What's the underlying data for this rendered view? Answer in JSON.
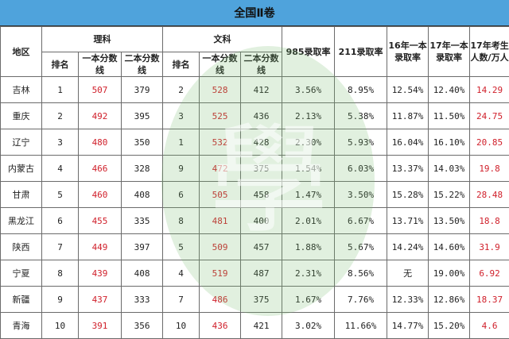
{
  "title": "全国Ⅱ卷",
  "headers": {
    "region": "地区",
    "science": "理科",
    "arts": "文科",
    "rank": "排名",
    "first_line": "一本分数线",
    "second_line": "二本分数线",
    "rate985": "985录取率",
    "rate211": "211录取率",
    "rate16": "16年一本录取率",
    "rate17": "17年一本录取率",
    "examinees17": "17年考生人数/万人"
  },
  "rows": [
    {
      "region": "吉林",
      "sci_rank": "1",
      "sci_first": "507",
      "sci_second": "379",
      "art_rank": "2",
      "art_first": "528",
      "art_second": "412",
      "r985": "3.56%",
      "r211": "8.95%",
      "r16": "12.54%",
      "r17": "12.40%",
      "count": "14.29"
    },
    {
      "region": "重庆",
      "sci_rank": "2",
      "sci_first": "492",
      "sci_second": "395",
      "art_rank": "3",
      "art_first": "525",
      "art_second": "436",
      "r985": "2.13%",
      "r211": "5.38%",
      "r16": "11.87%",
      "r17": "11.50%",
      "count": "24.75"
    },
    {
      "region": "辽宁",
      "sci_rank": "3",
      "sci_first": "480",
      "sci_second": "350",
      "art_rank": "1",
      "art_first": "532",
      "art_second": "428",
      "r985": "2.30%",
      "r211": "5.93%",
      "r16": "16.04%",
      "r17": "16.10%",
      "count": "20.85"
    },
    {
      "region": "内蒙古",
      "sci_rank": "4",
      "sci_first": "466",
      "sci_second": "328",
      "art_rank": "9",
      "art_first": "472",
      "art_second": "375",
      "r985": "1.54%",
      "r211": "6.03%",
      "r16": "13.37%",
      "r17": "14.03%",
      "count": "19.8"
    },
    {
      "region": "甘肃",
      "sci_rank": "5",
      "sci_first": "460",
      "sci_second": "408",
      "art_rank": "6",
      "art_first": "505",
      "art_second": "458",
      "r985": "1.47%",
      "r211": "3.50%",
      "r16": "15.28%",
      "r17": "15.22%",
      "count": "28.48"
    },
    {
      "region": "黑龙江",
      "sci_rank": "6",
      "sci_first": "455",
      "sci_second": "335",
      "art_rank": "8",
      "art_first": "481",
      "art_second": "400",
      "r985": "2.01%",
      "r211": "6.67%",
      "r16": "13.71%",
      "r17": "13.50%",
      "count": "18.8"
    },
    {
      "region": "陕西",
      "sci_rank": "7",
      "sci_first": "449",
      "sci_second": "397",
      "art_rank": "5",
      "art_first": "509",
      "art_second": "457",
      "r985": "1.88%",
      "r211": "5.67%",
      "r16": "14.24%",
      "r17": "14.60%",
      "count": "31.9"
    },
    {
      "region": "宁夏",
      "sci_rank": "8",
      "sci_first": "439",
      "sci_second": "408",
      "art_rank": "4",
      "art_first": "519",
      "art_second": "487",
      "r985": "2.31%",
      "r211": "8.56%",
      "r16": "无",
      "r17": "19.00%",
      "count": "6.92"
    },
    {
      "region": "新疆",
      "sci_rank": "9",
      "sci_first": "437",
      "sci_second": "333",
      "art_rank": "7",
      "art_first": "486",
      "art_second": "375",
      "r985": "1.67%",
      "r211": "7.76%",
      "r16": "12.33%",
      "r17": "12.86%",
      "count": "18.37"
    },
    {
      "region": "青海",
      "sci_rank": "10",
      "sci_first": "391",
      "sci_second": "356",
      "art_rank": "10",
      "art_first": "436",
      "art_second": "421",
      "r985": "3.02%",
      "r211": "11.66%",
      "r16": "14.77%",
      "r17": "15.20%",
      "count": "4.6"
    }
  ],
  "colors": {
    "header_bg": "#4fa3dc",
    "highlight": "#d0202b",
    "watermark": "#78b96e"
  }
}
